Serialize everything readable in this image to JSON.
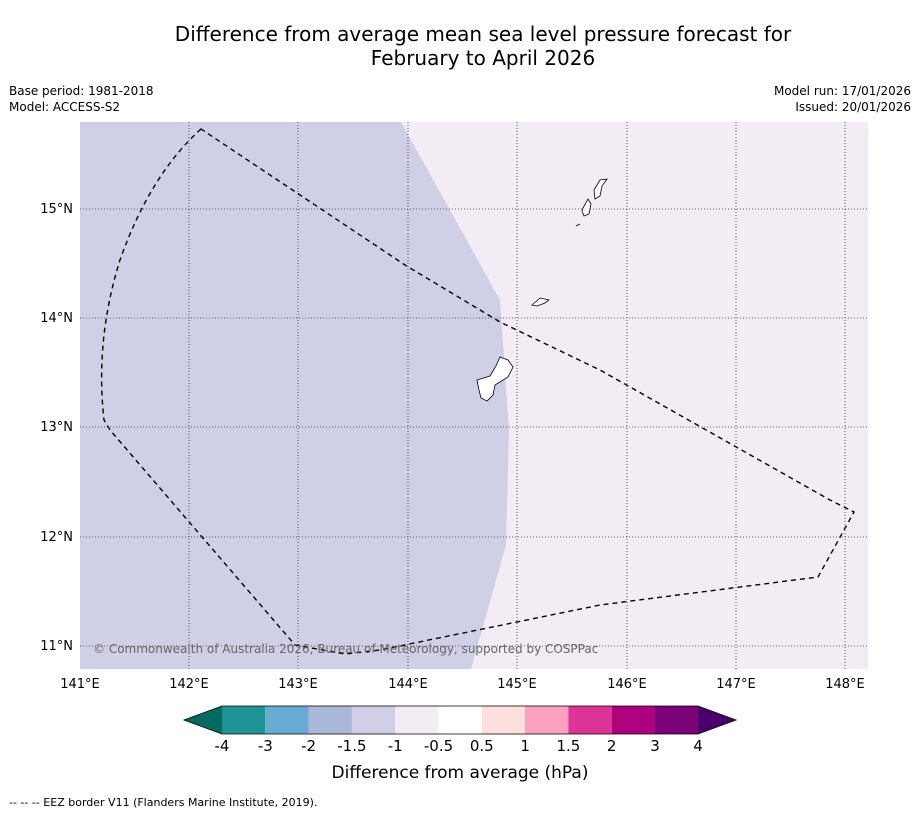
{
  "title_line1": "Difference from average mean sea level pressure forecast for",
  "title_line2": "February to April 2026",
  "base_period": "Base period: 1981-2018",
  "model": "Model: ACCESS-S2",
  "model_run": "Model run: 17/01/2026",
  "issued": "Issued: 20/01/2026",
  "copyright": "© Commonwealth of Australia 2026, Bureau of Meteorology, supported by COSPPac",
  "map": {
    "lon_range": [
      141,
      148.2
    ],
    "lat_range": [
      10.8,
      15.8
    ],
    "lon_ticks": [
      "141°E",
      "142°E",
      "143°E",
      "144°E",
      "145°E",
      "146°E",
      "147°E",
      "148°E"
    ],
    "lat_ticks": [
      "15°N",
      "14°N",
      "13°N",
      "12°N",
      "11°N"
    ],
    "fill_categories": [
      {
        "range": "-1.5 to -1 hPa",
        "color": "#cfd0e6",
        "region": "west"
      },
      {
        "range": "-1 to -0.5 hPa",
        "color": "#f4ecf5",
        "region": "east"
      }
    ]
  },
  "colorbar": {
    "labels": [
      "-4",
      "-3",
      "-2",
      "-1.5",
      "-1",
      "-0.5",
      "0.5",
      "1",
      "1.5",
      "2",
      "3",
      "4"
    ],
    "colors": [
      "#006d5e",
      "#1f9494",
      "#69aad2",
      "#a9b8d6",
      "#cfd0e6",
      "#f4ecf5",
      "#ffffff",
      "#fde0dd",
      "#fba0bd",
      "#dd3597",
      "#ad017e",
      "#7a0177",
      "#49006a"
    ],
    "label": "Difference from average (hPa)"
  },
  "footnote": "--  --  -- EEZ border V11 (Flanders Marine Institute, 2019)."
}
